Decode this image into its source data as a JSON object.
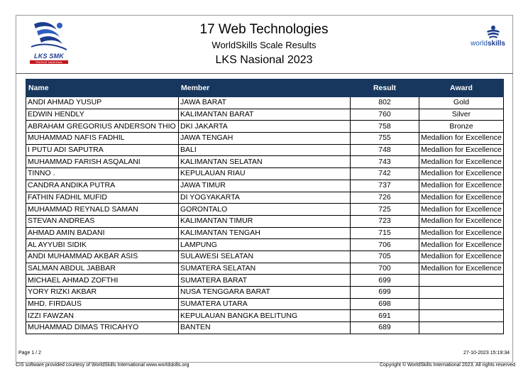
{
  "header": {
    "title": "17 Web Technologies",
    "subtitle": "WorldSkills Scale Results",
    "event": "LKS Nasional 2023",
    "left_logo": {
      "icon": "lks-smk-logo",
      "text": "LKS SMK",
      "subtext": "TINGKAT NASIONAL"
    },
    "right_logo": {
      "icon": "worldskills-logo",
      "text_light": "world",
      "text_bold": "skills"
    }
  },
  "table": {
    "columns": [
      "Name",
      "Member",
      "Result",
      "Award"
    ],
    "rows": [
      {
        "name": "ANDI AHMAD YUSUP",
        "member": "JAWA BARAT",
        "result": "802",
        "award": "Gold"
      },
      {
        "name": "EDWIN HENDLY",
        "member": "KALIMANTAN BARAT",
        "result": "760",
        "award": "Silver"
      },
      {
        "name": "ABRAHAM GREGORIUS ANDERSON THIO",
        "member": "DKI JAKARTA",
        "result": "758",
        "award": "Bronze"
      },
      {
        "name": "MUHAMMAD NAFIS FADHIL",
        "member": "JAWA TENGAH",
        "result": "755",
        "award": "Medallion for Excellence"
      },
      {
        "name": "I PUTU ADI  SAPUTRA",
        "member": "BALI",
        "result": "748",
        "award": "Medallion for Excellence"
      },
      {
        "name": "MUHAMMAD FARISH ASQALANI",
        "member": "KALIMANTAN SELATAN",
        "result": "743",
        "award": "Medallion for Excellence"
      },
      {
        "name": "TINNO .",
        "member": "KEPULAUAN RIAU",
        "result": "742",
        "award": "Medallion for Excellence"
      },
      {
        "name": "CANDRA ANDIKA PUTRA",
        "member": "JAWA TIMUR",
        "result": "737",
        "award": "Medallion for Excellence"
      },
      {
        "name": "FATHIN FADHIL MUFID",
        "member": "DI YOGYAKARTA",
        "result": "726",
        "award": "Medallion for Excellence"
      },
      {
        "name": "MUHAMMAD REYNALD SAMAN",
        "member": "GORONTALO",
        "result": "725",
        "award": "Medallion for Excellence"
      },
      {
        "name": "STEVAN ANDREAS",
        "member": "KALIMANTAN TIMUR",
        "result": "723",
        "award": "Medallion for Excellence"
      },
      {
        "name": "AHMAD AMIN BADANI",
        "member": "KALIMANTAN TENGAH",
        "result": "715",
        "award": "Medallion for Excellence"
      },
      {
        "name": "AL AYYUBI SIDIK",
        "member": "LAMPUNG",
        "result": "706",
        "award": "Medallion for Excellence"
      },
      {
        "name": "ANDI MUHAMMAD AKBAR  ASIS",
        "member": "SULAWESI SELATAN",
        "result": "705",
        "award": "Medallion for Excellence"
      },
      {
        "name": "SALMAN ABDUL JABBAR",
        "member": "SUMATERA SELATAN",
        "result": "700",
        "award": "Medallion for Excellence"
      },
      {
        "name": "MICHAEL AHMAD ZOFTHI",
        "member": "SUMATERA BARAT",
        "result": "699",
        "award": ""
      },
      {
        "name": "YORY RIZKI AKBAR",
        "member": "NUSA TENGGARA BARAT",
        "result": "699",
        "award": ""
      },
      {
        "name": "MHD. FIRDAUS",
        "member": "SUMATERA UTARA",
        "result": "698",
        "award": ""
      },
      {
        "name": "IZZI FAWZAN",
        "member": "KEPULAUAN BANGKA BELITUNG",
        "result": "691",
        "award": ""
      },
      {
        "name": "MUHAMMAD DIMAS TRICAHYO",
        "member": "BANTEN",
        "result": "689",
        "award": ""
      }
    ]
  },
  "footer": {
    "page": "Page 1 / 2",
    "timestamp": "27-10-2023 15:19:34",
    "courtesy": "CIS software provided courtesy of WorldSkills International www.worldskills.org",
    "copyright": "Copyright © WorldSkills International 2023.  All rights reserved"
  },
  "colors": {
    "header_bg": "#17375e",
    "header_text": "#ffffff",
    "brand_blue": "#1e3d8f"
  }
}
